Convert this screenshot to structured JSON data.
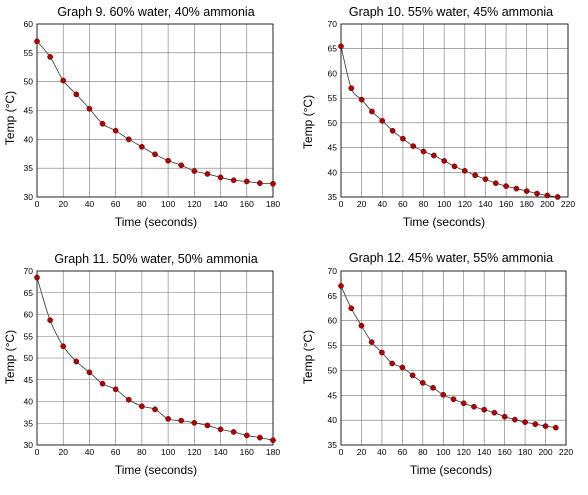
{
  "chart_data": [
    {
      "type": "scatter",
      "title": "Graph 9. 60% water, 40% ammonia",
      "xlabel": "Time (seconds)",
      "ylabel": "Temp (°C)",
      "xlim": [
        0,
        180
      ],
      "ylim": [
        30,
        60
      ],
      "xticks": [
        0,
        20,
        40,
        60,
        80,
        100,
        120,
        140,
        160,
        180
      ],
      "yticks": [
        30,
        35,
        40,
        45,
        50,
        55,
        60
      ],
      "grid": true,
      "point_color": "#b00000",
      "x": [
        0,
        10,
        20,
        30,
        40,
        50,
        60,
        70,
        80,
        90,
        100,
        110,
        120,
        130,
        140,
        150,
        160,
        170,
        180
      ],
      "y": [
        57.0,
        54.3,
        50.2,
        47.8,
        45.3,
        42.7,
        41.5,
        40.0,
        38.7,
        37.4,
        36.3,
        35.5,
        34.5,
        34.0,
        33.4,
        32.9,
        32.7,
        32.4,
        32.3
      ]
    },
    {
      "type": "scatter",
      "title": "Graph 10. 55% water, 45% ammonia",
      "xlabel": "Time (seconds)",
      "ylabel": "Temp (°C)",
      "xlim": [
        0,
        220
      ],
      "ylim": [
        35,
        70
      ],
      "xticks": [
        0,
        20,
        40,
        60,
        80,
        100,
        120,
        140,
        160,
        180,
        200,
        220
      ],
      "yticks": [
        35,
        40,
        45,
        50,
        55,
        60,
        65,
        70
      ],
      "grid": true,
      "point_color": "#b00000",
      "x": [
        0,
        10,
        20,
        30,
        40,
        50,
        60,
        70,
        80,
        90,
        100,
        110,
        120,
        130,
        140,
        150,
        160,
        170,
        180,
        190,
        200,
        210
      ],
      "y": [
        65.5,
        57.0,
        54.7,
        52.3,
        50.4,
        48.4,
        46.8,
        45.3,
        44.2,
        43.4,
        42.3,
        41.2,
        40.3,
        39.4,
        38.6,
        37.8,
        37.2,
        36.7,
        36.2,
        35.7,
        35.3,
        35.0
      ]
    },
    {
      "type": "scatter",
      "title": "Graph 11. 50% water, 50% ammonia",
      "xlabel": "Time (seconds)",
      "ylabel": "Temp (°C)",
      "xlim": [
        0,
        180
      ],
      "ylim": [
        30,
        70
      ],
      "xticks": [
        0,
        20,
        40,
        60,
        80,
        100,
        120,
        140,
        160,
        180
      ],
      "yticks": [
        30,
        35,
        40,
        45,
        50,
        55,
        60,
        65,
        70
      ],
      "grid": true,
      "point_color": "#b00000",
      "x": [
        0,
        10,
        20,
        30,
        40,
        50,
        60,
        70,
        80,
        90,
        100,
        110,
        120,
        130,
        140,
        150,
        160,
        170,
        180
      ],
      "y": [
        68.5,
        58.7,
        52.7,
        49.2,
        46.7,
        44.1,
        42.8,
        40.4,
        38.9,
        38.2,
        36.0,
        35.6,
        35.1,
        34.5,
        33.6,
        33.0,
        32.2,
        31.7,
        31.1
      ]
    },
    {
      "type": "scatter",
      "title": "Graph 12. 45% water, 55% ammonia",
      "xlabel": "Time (seconds)",
      "ylabel": "Temp (°C)",
      "xlim": [
        0,
        220
      ],
      "ylim": [
        35,
        70
      ],
      "xticks": [
        0,
        20,
        40,
        60,
        80,
        100,
        120,
        140,
        160,
        180,
        200,
        220
      ],
      "yticks": [
        35,
        40,
        45,
        50,
        55,
        60,
        65,
        70
      ],
      "grid": true,
      "point_color": "#b00000",
      "x": [
        0,
        10,
        20,
        30,
        40,
        50,
        60,
        70,
        80,
        90,
        100,
        110,
        120,
        130,
        140,
        150,
        160,
        170,
        180,
        190,
        200,
        210
      ],
      "y": [
        67.0,
        62.5,
        59.0,
        55.7,
        53.6,
        51.4,
        50.6,
        49.0,
        47.5,
        46.5,
        45.1,
        44.2,
        43.4,
        42.7,
        42.1,
        41.5,
        40.7,
        40.1,
        39.6,
        39.2,
        38.8,
        38.5
      ]
    }
  ]
}
